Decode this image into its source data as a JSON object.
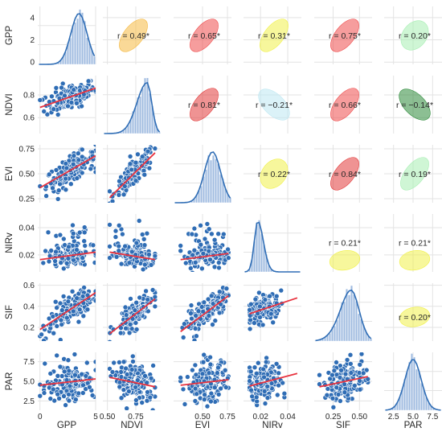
{
  "chart_data": {
    "type": "pairplot",
    "variables": [
      "GPP",
      "NDVI",
      "EVI",
      "NIRv",
      "SIF",
      "PAR"
    ],
    "ranges": {
      "GPP": [
        -0.2,
        5.0
      ],
      "NDVI": [
        0.46,
        0.97
      ],
      "EVI": [
        0.21,
        0.79
      ],
      "NIRv": [
        0.0075,
        0.05
      ],
      "SIF": [
        0.07,
        0.62
      ],
      "PAR": [
        1.3,
        8.7
      ]
    },
    "x_ticks": {
      "GPP": [
        "0",
        "5"
      ],
      "NDVI": [
        "0.50",
        "0.75"
      ],
      "EVI": [
        "0.50",
        "0.75"
      ],
      "NIRv": [
        "0.02",
        "0.04"
      ],
      "SIF": [
        "0.25",
        "0.50"
      ],
      "PAR": [
        "2.5",
        "5.0",
        "7.5"
      ]
    },
    "x_tick_values": {
      "GPP": [
        0,
        5
      ],
      "NDVI": [
        0.5,
        0.75
      ],
      "EVI": [
        0.5,
        0.75
      ],
      "NIRv": [
        0.02,
        0.04
      ],
      "SIF": [
        0.25,
        0.5
      ],
      "PAR": [
        2.5,
        5.0,
        7.5
      ]
    },
    "y_ticks": {
      "GPP": [
        "0",
        "2",
        "4"
      ],
      "NDVI": [
        "0.6",
        "0.8"
      ],
      "EVI": [
        "0.25",
        "0.50",
        "0.75"
      ],
      "NIRv": [
        "0.02",
        "0.04"
      ],
      "SIF": [
        "0.2",
        "0.4",
        "0.6"
      ],
      "PAR": [
        "2.5",
        "5.0",
        "7.5"
      ]
    },
    "y_tick_values": {
      "GPP": [
        0,
        2,
        4
      ],
      "NDVI": [
        0.6,
        0.8
      ],
      "EVI": [
        0.25,
        0.5,
        0.75
      ],
      "NIRv": [
        0.02,
        0.04
      ],
      "SIF": [
        0.2,
        0.4,
        0.6
      ],
      "PAR": [
        2.5,
        5.0,
        7.5
      ]
    },
    "correlations": [
      {
        "row": 0,
        "col": 1,
        "label": "r = 0.49*",
        "color": "#f5b942",
        "tilt": "positive"
      },
      {
        "row": 0,
        "col": 2,
        "label": "r = 0.65*",
        "color": "#ef4c4c",
        "tilt": "positive"
      },
      {
        "row": 0,
        "col": 3,
        "label": "r = 0.31*",
        "color": "#f1f14a",
        "tilt": "positive"
      },
      {
        "row": 0,
        "col": 4,
        "label": "r = 0.75*",
        "color": "#ef4c4c",
        "tilt": "positive"
      },
      {
        "row": 0,
        "col": 5,
        "label": "r = 0.20*",
        "color": "#a7eeb3",
        "tilt": "positive"
      },
      {
        "row": 1,
        "col": 2,
        "label": "r = 0.81*",
        "color": "#e23a3a",
        "tilt": "positive"
      },
      {
        "row": 1,
        "col": 3,
        "label": "r = −0.21*",
        "color": "#bde7f2",
        "tilt": "negative"
      },
      {
        "row": 1,
        "col": 4,
        "label": "r = 0.66*",
        "color": "#ef4c4c",
        "tilt": "positive"
      },
      {
        "row": 1,
        "col": 5,
        "label": "r = −0.14*",
        "color": "#2e8b3b",
        "tilt": "negative"
      },
      {
        "row": 2,
        "col": 3,
        "label": "r = 0.22*",
        "color": "#f1f14a",
        "tilt": "positive"
      },
      {
        "row": 2,
        "col": 4,
        "label": "r = 0.84*",
        "color": "#e23a3a",
        "tilt": "positive"
      },
      {
        "row": 2,
        "col": 5,
        "label": "r = 0.19*",
        "color": "#a7eeb3",
        "tilt": "positive"
      },
      {
        "row": 3,
        "col": 4,
        "label": "r = 0.21*",
        "color": "#f1f14a",
        "tilt": "flat"
      },
      {
        "row": 3,
        "col": 5,
        "label": "r = 0.21*",
        "color": "#f1f14a",
        "tilt": "flat"
      },
      {
        "row": 4,
        "col": 5,
        "label": "r = 0.20*",
        "color": "#f1f14a",
        "tilt": "flat"
      }
    ],
    "regression_lines": [
      {
        "x": "GPP",
        "y": "NDVI",
        "x0": 0,
        "y0": 0.69,
        "x1": 5,
        "y1": 0.86
      },
      {
        "x": "GPP",
        "y": "EVI",
        "x0": 0,
        "y0": 0.36,
        "x1": 5,
        "y1": 0.68
      },
      {
        "x": "NDVI",
        "y": "EVI",
        "x0": 0.52,
        "y0": 0.26,
        "x1": 0.92,
        "y1": 0.71
      },
      {
        "x": "GPP",
        "y": "NIRv",
        "x0": 0,
        "y0": 0.0165,
        "x1": 5,
        "y1": 0.022
      },
      {
        "x": "NDVI",
        "y": "NIRv",
        "x0": 0.52,
        "y0": 0.022,
        "x1": 0.92,
        "y1": 0.0165
      },
      {
        "x": "EVI",
        "y": "NIRv",
        "x0": 0.28,
        "y0": 0.0165,
        "x1": 0.76,
        "y1": 0.021
      },
      {
        "x": "GPP",
        "y": "SIF",
        "x0": 0,
        "y0": 0.18,
        "x1": 5,
        "y1": 0.53
      },
      {
        "x": "NDVI",
        "y": "SIF",
        "x0": 0.52,
        "y0": 0.14,
        "x1": 0.92,
        "y1": 0.47
      },
      {
        "x": "EVI",
        "y": "SIF",
        "x0": 0.28,
        "y0": 0.16,
        "x1": 0.76,
        "y1": 0.5
      },
      {
        "x": "NIRv",
        "y": "SIF",
        "x0": 0.012,
        "y0": 0.33,
        "x1": 0.047,
        "y1": 0.48
      },
      {
        "x": "GPP",
        "y": "PAR",
        "x0": 0,
        "y0": 4.5,
        "x1": 5,
        "y1": 5.3
      },
      {
        "x": "NDVI",
        "y": "PAR",
        "x0": 0.52,
        "y0": 5.5,
        "x1": 0.92,
        "y1": 4.3
      },
      {
        "x": "EVI",
        "y": "PAR",
        "x0": 0.28,
        "y0": 4.5,
        "x1": 0.76,
        "y1": 5.2
      },
      {
        "x": "NIRv",
        "y": "PAR",
        "x0": 0.012,
        "y0": 4.4,
        "x1": 0.047,
        "y1": 6.0
      },
      {
        "x": "SIF",
        "y": "PAR",
        "x0": 0.12,
        "y0": 4.3,
        "x1": 0.58,
        "y1": 5.6
      }
    ],
    "distribution_peaks": {
      "GPP": 3.5,
      "NDVI": 0.85,
      "EVI": 0.6,
      "NIRv": 0.018,
      "SIF": 0.42,
      "PAR": 5.0
    },
    "colors": {
      "points": "#2f6db5",
      "point_edge": "#ffffff",
      "regression": "#e8333f",
      "histogram": "#9fbbe0",
      "kde": "#2f6db5",
      "grid": "#e3e3e3",
      "background": "#ffffff"
    },
    "grid": true,
    "legend": "none"
  }
}
